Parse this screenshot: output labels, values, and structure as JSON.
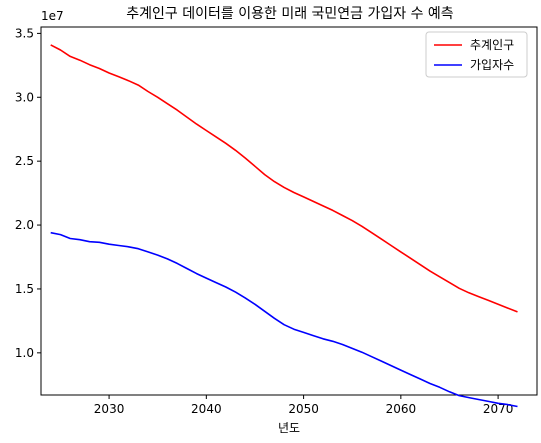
{
  "chart_data": {
    "type": "line",
    "title": "추계인구 데이터를 이용한 미래 국민연금 가입자 수 예측",
    "xlabel": "년도",
    "ylabel": "",
    "offset_label": "1e7",
    "xlim": [
      2023,
      2074
    ],
    "ylim": [
      6.7,
      35.5
    ],
    "xticks": [
      2030,
      2040,
      2050,
      2060,
      2070
    ],
    "yticks": [
      10,
      15,
      20,
      25,
      30,
      35
    ],
    "ytick_labels": [
      "1.0",
      "1.5",
      "2.0",
      "2.5",
      "3.0",
      "3.5"
    ],
    "grid": false,
    "legend_position": "top-right",
    "x": [
      2024,
      2025,
      2026,
      2027,
      2028,
      2029,
      2030,
      2031,
      2032,
      2033,
      2034,
      2035,
      2036,
      2037,
      2038,
      2039,
      2040,
      2041,
      2042,
      2043,
      2044,
      2045,
      2046,
      2047,
      2048,
      2049,
      2050,
      2051,
      2052,
      2053,
      2054,
      2055,
      2056,
      2057,
      2058,
      2059,
      2060,
      2061,
      2062,
      2063,
      2064,
      2065,
      2066,
      2067,
      2068,
      2069,
      2070,
      2071,
      2072
    ],
    "series": [
      {
        "name": "추계인구",
        "color": "#ff0000",
        "values": [
          34.1,
          33.7,
          33.2,
          32.9,
          32.55,
          32.25,
          31.9,
          31.6,
          31.3,
          30.95,
          30.45,
          30.0,
          29.5,
          29.0,
          28.45,
          27.9,
          27.4,
          26.9,
          26.4,
          25.85,
          25.25,
          24.6,
          23.95,
          23.4,
          22.95,
          22.55,
          22.2,
          21.85,
          21.5,
          21.15,
          20.75,
          20.35,
          19.9,
          19.4,
          18.9,
          18.4,
          17.9,
          17.4,
          16.9,
          16.4,
          15.95,
          15.5,
          15.05,
          14.7,
          14.4,
          14.1,
          13.8,
          13.5,
          13.2
        ]
      },
      {
        "name": "가입자수",
        "color": "#0000ff",
        "values": [
          19.4,
          19.25,
          18.95,
          18.85,
          18.7,
          18.65,
          18.5,
          18.4,
          18.3,
          18.15,
          17.9,
          17.65,
          17.35,
          17.0,
          16.6,
          16.2,
          15.85,
          15.5,
          15.15,
          14.75,
          14.3,
          13.8,
          13.25,
          12.7,
          12.2,
          11.85,
          11.6,
          11.35,
          11.1,
          10.9,
          10.65,
          10.35,
          10.05,
          9.7,
          9.35,
          9.0,
          8.65,
          8.3,
          7.95,
          7.6,
          7.3,
          6.95,
          6.65,
          6.5,
          6.35,
          6.2,
          6.05,
          5.95,
          5.8
        ]
      }
    ]
  }
}
